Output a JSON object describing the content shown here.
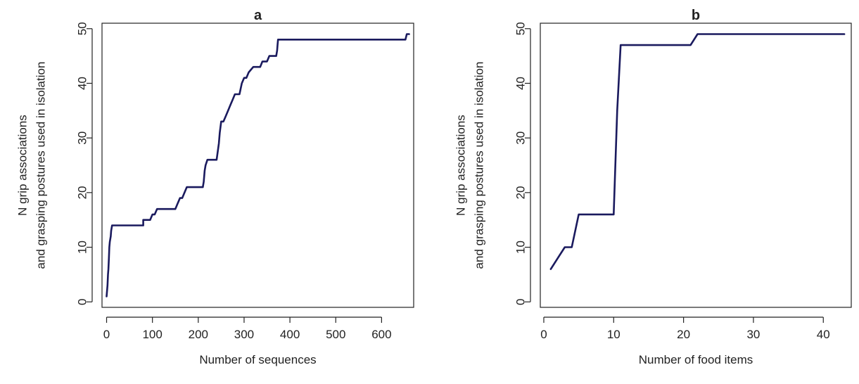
{
  "chart_data": [
    {
      "type": "line",
      "title": "a",
      "xlabel": "Number of sequences",
      "ylabel_lines": [
        "N grip associations",
        "and grasping postures used in isolation"
      ],
      "xlim": [
        -10,
        670
      ],
      "ylim": [
        -1,
        51
      ],
      "xticks": [
        0,
        100,
        200,
        300,
        400,
        500,
        600
      ],
      "yticks": [
        0,
        10,
        20,
        30,
        40,
        50
      ],
      "grid": false,
      "series": [
        {
          "color": "#1a1a5e",
          "x": [
            0,
            2,
            3,
            4,
            5,
            6,
            7,
            9,
            10,
            12,
            15,
            80,
            80,
            90,
            95,
            100,
            105,
            110,
            120,
            150,
            155,
            160,
            165,
            170,
            175,
            210,
            212,
            214,
            216,
            220,
            240,
            245,
            247,
            250,
            255,
            260,
            265,
            270,
            275,
            280,
            290,
            295,
            300,
            305,
            310,
            320,
            325,
            335,
            340,
            350,
            355,
            370,
            372,
            373,
            374,
            650,
            652,
            655,
            660
          ],
          "y": [
            1,
            3,
            5,
            6,
            8,
            10,
            11,
            12,
            13,
            14,
            14,
            14,
            15,
            15,
            15,
            16,
            16,
            17,
            17,
            17,
            18,
            19,
            19,
            20,
            21,
            21,
            22,
            24,
            25,
            26,
            26,
            29,
            31,
            33,
            33,
            34,
            35,
            36,
            37,
            38,
            38,
            40,
            41,
            41,
            42,
            43,
            43,
            43,
            44,
            44,
            45,
            45,
            46,
            47,
            48,
            48,
            48,
            49,
            49
          ]
        }
      ]
    },
    {
      "type": "line",
      "title": "b",
      "xlabel": "Number of food items",
      "ylabel_lines": [
        "N grip associations",
        "and grasping postures used in isolation"
      ],
      "xlim": [
        -0.5,
        44
      ],
      "ylim": [
        -1,
        51
      ],
      "xticks": [
        0,
        10,
        20,
        30,
        40
      ],
      "yticks": [
        0,
        10,
        20,
        30,
        40,
        50
      ],
      "grid": false,
      "series": [
        {
          "color": "#1a1a5e",
          "x": [
            1,
            2,
            3,
            3.5,
            4,
            5,
            6,
            7,
            8,
            9,
            10,
            10.5,
            11,
            12,
            13,
            14,
            15,
            16,
            17,
            18,
            19,
            20,
            21,
            22,
            25,
            30,
            35,
            40,
            43
          ],
          "y": [
            6,
            8,
            10,
            10,
            10,
            16,
            16,
            16,
            16,
            16,
            16,
            35,
            47,
            47,
            47,
            47,
            47,
            47,
            47,
            47,
            47,
            47,
            47,
            49,
            49,
            49,
            49,
            49,
            49
          ]
        }
      ]
    }
  ]
}
